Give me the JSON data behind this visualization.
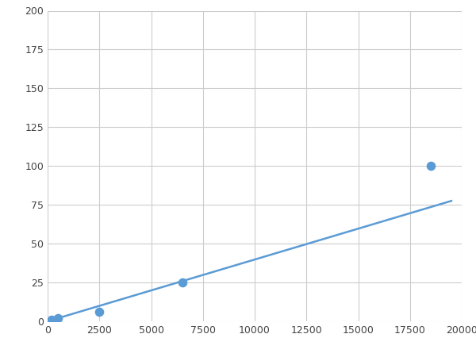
{
  "x": [
    200,
    500,
    2500,
    6500,
    18500
  ],
  "y": [
    1,
    2,
    6,
    25,
    100
  ],
  "line_color": "#5b9bd5",
  "marker_color": "#5b9bd5",
  "marker_size": 6,
  "line_width": 1.8,
  "xlim": [
    0,
    20000
  ],
  "ylim": [
    0,
    200
  ],
  "xticks": [
    0,
    2500,
    5000,
    7500,
    10000,
    12500,
    15000,
    17500,
    20000
  ],
  "yticks": [
    0,
    25,
    50,
    75,
    100,
    125,
    150,
    175,
    200
  ],
  "grid_color": "#cccccc",
  "background_color": "#ffffff",
  "figure_background": "#ffffff"
}
